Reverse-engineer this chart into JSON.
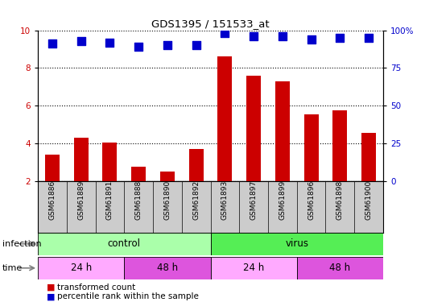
{
  "title": "GDS1395 / 151533_at",
  "samples": [
    "GSM61886",
    "GSM61889",
    "GSM61891",
    "GSM61888",
    "GSM61890",
    "GSM61892",
    "GSM61893",
    "GSM61897",
    "GSM61899",
    "GSM61896",
    "GSM61898",
    "GSM61900"
  ],
  "transformed_count": [
    3.4,
    4.3,
    4.05,
    2.75,
    2.5,
    3.7,
    8.6,
    7.6,
    7.3,
    5.55,
    5.75,
    4.55
  ],
  "percentile_rank": [
    91,
    93,
    92,
    89,
    90,
    90,
    98,
    96,
    96,
    94,
    95,
    95
  ],
  "bar_color": "#cc0000",
  "dot_color": "#0000cc",
  "ylim_left": [
    2,
    10
  ],
  "ylim_right": [
    0,
    100
  ],
  "yticks_left": [
    2,
    4,
    6,
    8,
    10
  ],
  "yticks_right": [
    0,
    25,
    50,
    75,
    100
  ],
  "infection_segments": [
    {
      "label": "control",
      "start": 0,
      "end": 6,
      "color": "#aaffaa"
    },
    {
      "label": "virus",
      "start": 6,
      "end": 12,
      "color": "#55ee55"
    }
  ],
  "time_segments": [
    {
      "label": "24 h",
      "start": 0,
      "end": 3,
      "color": "#ffaaff"
    },
    {
      "label": "48 h",
      "start": 3,
      "end": 6,
      "color": "#dd55dd"
    },
    {
      "label": "24 h",
      "start": 6,
      "end": 9,
      "color": "#ffaaff"
    },
    {
      "label": "48 h",
      "start": 9,
      "end": 12,
      "color": "#dd55dd"
    }
  ],
  "legend_red_label": "transformed count",
  "legend_blue_label": "percentile rank within the sample",
  "infection_row_label": "infection",
  "time_row_label": "time",
  "background_color": "#ffffff",
  "xtick_bg_color": "#cccccc",
  "bar_width": 0.5,
  "dot_size": 45,
  "dot_marker": "s",
  "tick_label_color_left": "#cc0000",
  "tick_label_color_right": "#0000cc",
  "ytick_right_labels": [
    "0",
    "25",
    "50",
    "75",
    "100%"
  ]
}
